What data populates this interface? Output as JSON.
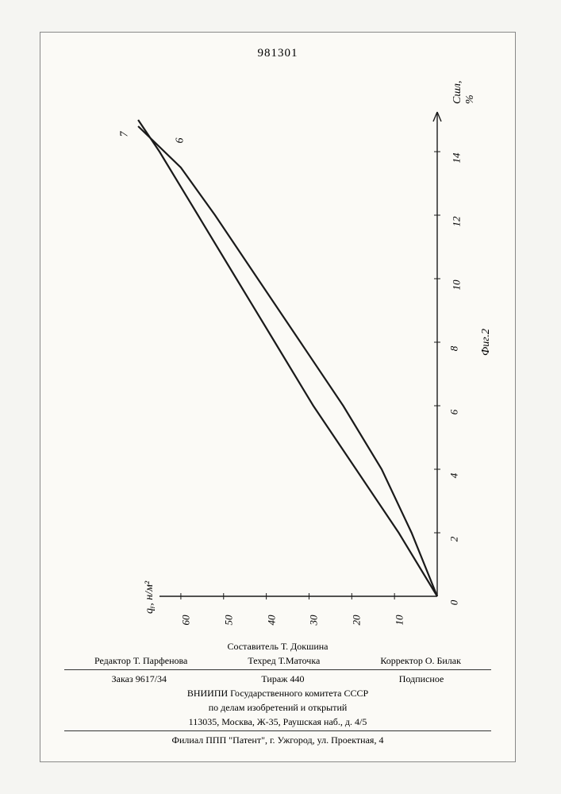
{
  "document_number": "981301",
  "chart": {
    "type": "line",
    "background_color": "#fbfaf6",
    "axis_color": "#1a1a1a",
    "line_width": 2.2,
    "y_axis": {
      "label": "qᵧ, н/м²",
      "ticks": [
        0,
        10,
        20,
        30,
        40,
        50,
        60
      ],
      "max": 65
    },
    "x_axis": {
      "label": "Cшл, %",
      "ticks": [
        0,
        2,
        4,
        6,
        8,
        10,
        12,
        14
      ],
      "max": 15
    },
    "curves": [
      {
        "id": "6",
        "points": [
          [
            0,
            0
          ],
          [
            2,
            6
          ],
          [
            4,
            13
          ],
          [
            6,
            22
          ],
          [
            8,
            32
          ],
          [
            10,
            42
          ],
          [
            12,
            52
          ],
          [
            13.5,
            60
          ],
          [
            14.8,
            70
          ]
        ]
      },
      {
        "id": "7",
        "points": [
          [
            0,
            0
          ],
          [
            2,
            9
          ],
          [
            4,
            19
          ],
          [
            6,
            29
          ],
          [
            8,
            38
          ],
          [
            10,
            47
          ],
          [
            12,
            56
          ],
          [
            14,
            65
          ],
          [
            15,
            70
          ]
        ]
      }
    ],
    "figure_label": "Фиг.2"
  },
  "footer": {
    "compiler_label": "Составитель",
    "compiler": "Т. Докшина",
    "editor_label": "Редактор",
    "editor": "Т. Парфенова",
    "tech_editor_label": "Техред",
    "tech_editor": "Т.Маточка",
    "corrector_label": "Корректор",
    "corrector": "О. Билак",
    "order_label": "Заказ",
    "order": "9617/34",
    "circulation_label": "Тираж",
    "circulation": "440",
    "subscription": "Подписное",
    "org_line1": "ВНИИПИ Государственного комитета СССР",
    "org_line2": "по делам изобретений и открытий",
    "address1": "113035, Москва, Ж-35, Раушская наб., д. 4/5",
    "address2": "Филиал ППП \"Патент\", г. Ужгород, ул. Проектная, 4"
  }
}
